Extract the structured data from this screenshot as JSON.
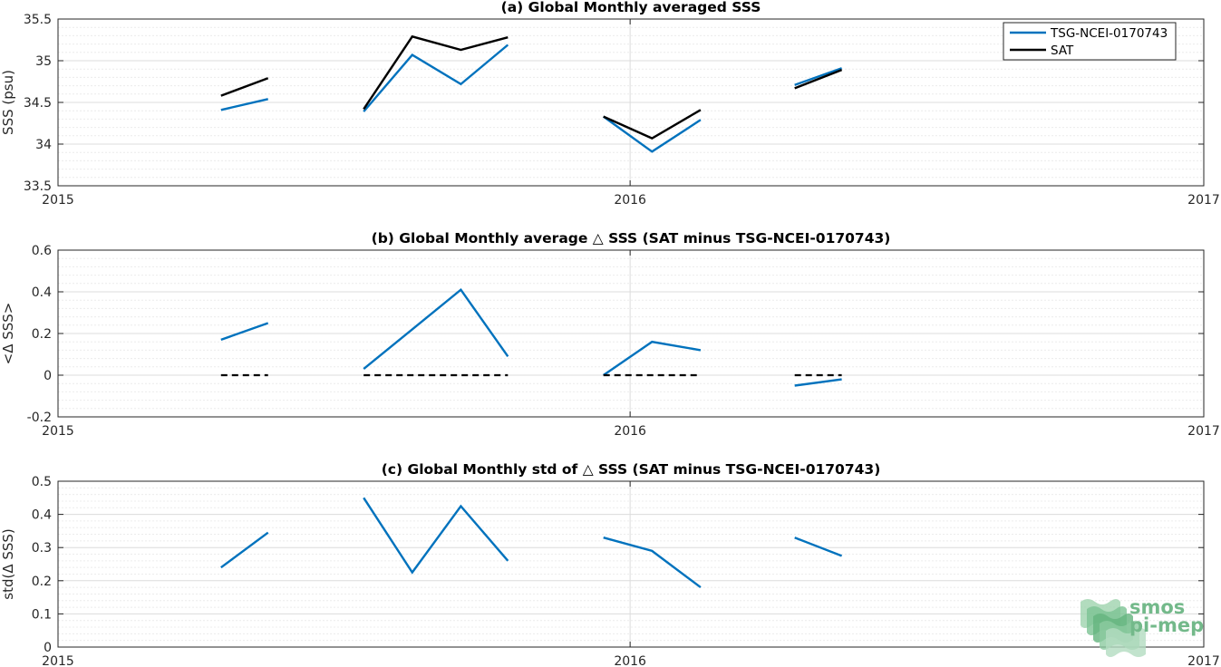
{
  "colors": {
    "tsg": "#0072bd",
    "sat": "#000000",
    "grid_major": "#dcdcdc",
    "grid_minor": "#ececec",
    "axis": "#262626",
    "logo": "#73b98a"
  },
  "logo": {
    "line1": "smos",
    "line2": "pi-mep"
  },
  "chart_data": [
    {
      "type": "line",
      "title": "(a) Global Monthly averaged SSS",
      "ylabel": "SSS (psu)",
      "xlim": [
        "2015-01-01",
        "2017-01-01"
      ],
      "ylim": [
        33.5,
        35.5
      ],
      "xticks": [
        "2015-01-01",
        "2016-01-01",
        "2017-01-01"
      ],
      "xtick_labels": [
        "2015",
        "2016",
        "2017"
      ],
      "yticks": [
        33.5,
        34,
        34.5,
        35,
        35.5
      ],
      "ytick_labels": [
        "33.5",
        "34",
        "34.5",
        "35",
        "35.5"
      ],
      "grid": true,
      "legend": "top-right",
      "series": [
        {
          "name": "TSG-NCEI-0170743",
          "color": "#0072bd",
          "segments": [
            [
              [
                "2015-04-15",
                34.41
              ],
              [
                "2015-05-15",
                34.54
              ]
            ],
            [
              [
                "2015-07-15",
                34.39
              ],
              [
                "2015-08-15",
                35.07
              ],
              [
                "2015-09-15",
                34.72
              ],
              [
                "2015-10-15",
                35.19
              ]
            ],
            [
              [
                "2015-12-15",
                34.33
              ],
              [
                "2016-01-15",
                33.91
              ],
              [
                "2016-02-15",
                34.29
              ]
            ],
            [
              [
                "2016-04-15",
                34.71
              ],
              [
                "2016-05-15",
                34.91
              ]
            ]
          ]
        },
        {
          "name": "SAT",
          "color": "#000000",
          "segments": [
            [
              [
                "2015-04-15",
                34.58
              ],
              [
                "2015-05-15",
                34.79
              ]
            ],
            [
              [
                "2015-07-15",
                34.42
              ],
              [
                "2015-08-15",
                35.29
              ],
              [
                "2015-09-15",
                35.13
              ],
              [
                "2015-10-15",
                35.28
              ]
            ],
            [
              [
                "2015-12-15",
                34.33
              ],
              [
                "2016-01-15",
                34.07
              ],
              [
                "2016-02-15",
                34.41
              ]
            ],
            [
              [
                "2016-04-15",
                34.67
              ],
              [
                "2016-05-15",
                34.89
              ]
            ]
          ]
        }
      ]
    },
    {
      "type": "line",
      "title": "(b) Global Monthly average △ SSS (SAT minus TSG-NCEI-0170743)",
      "ylabel": "<Δ SSS>",
      "xlim": [
        "2015-01-01",
        "2017-01-01"
      ],
      "ylim": [
        -0.2,
        0.6
      ],
      "xticks": [
        "2015-01-01",
        "2016-01-01",
        "2017-01-01"
      ],
      "xtick_labels": [
        "2015",
        "2016",
        "2017"
      ],
      "yticks": [
        -0.2,
        0,
        0.2,
        0.4,
        0.6
      ],
      "ytick_labels": [
        "-0.2",
        "0",
        "0.2",
        "0.4",
        "0.6"
      ],
      "grid": true,
      "series": [
        {
          "color": "#0072bd",
          "segments": [
            [
              [
                "2015-04-15",
                0.17
              ],
              [
                "2015-05-15",
                0.25
              ]
            ],
            [
              [
                "2015-07-15",
                0.03
              ],
              [
                "2015-08-15",
                0.22
              ],
              [
                "2015-09-15",
                0.41
              ],
              [
                "2015-10-15",
                0.09
              ]
            ],
            [
              [
                "2015-12-15",
                0.0
              ],
              [
                "2016-01-15",
                0.16
              ],
              [
                "2016-02-15",
                0.12
              ]
            ],
            [
              [
                "2016-04-15",
                -0.05
              ],
              [
                "2016-05-15",
                -0.02
              ]
            ]
          ]
        },
        {
          "color": "#000000",
          "dashed": true,
          "segments": [
            [
              [
                "2015-04-15",
                0
              ],
              [
                "2015-05-15",
                0
              ]
            ],
            [
              [
                "2015-07-15",
                0
              ],
              [
                "2015-10-15",
                0
              ]
            ],
            [
              [
                "2015-12-15",
                0
              ],
              [
                "2016-02-15",
                0
              ]
            ],
            [
              [
                "2016-04-15",
                0
              ],
              [
                "2016-05-15",
                0
              ]
            ]
          ]
        }
      ]
    },
    {
      "type": "line",
      "title": "(c) Global Monthly std of △ SSS (SAT minus TSG-NCEI-0170743)",
      "ylabel": "std(Δ SSS)",
      "xlim": [
        "2015-01-01",
        "2017-01-01"
      ],
      "ylim": [
        0,
        0.5
      ],
      "xticks": [
        "2015-01-01",
        "2016-01-01",
        "2017-01-01"
      ],
      "xtick_labels": [
        "2015",
        "2016",
        "2017"
      ],
      "yticks": [
        0,
        0.1,
        0.2,
        0.3,
        0.4,
        0.5
      ],
      "ytick_labels": [
        "0",
        "0.1",
        "0.2",
        "0.3",
        "0.4",
        "0.5"
      ],
      "grid": true,
      "series": [
        {
          "color": "#0072bd",
          "segments": [
            [
              [
                "2015-04-15",
                0.24
              ],
              [
                "2015-05-15",
                0.345
              ]
            ],
            [
              [
                "2015-07-15",
                0.45
              ],
              [
                "2015-08-15",
                0.225
              ],
              [
                "2015-09-15",
                0.425
              ],
              [
                "2015-10-15",
                0.26
              ]
            ],
            [
              [
                "2015-12-15",
                0.33
              ],
              [
                "2016-01-15",
                0.29
              ],
              [
                "2016-02-15",
                0.18
              ]
            ],
            [
              [
                "2016-04-15",
                0.33
              ],
              [
                "2016-05-15",
                0.275
              ]
            ]
          ]
        }
      ]
    }
  ]
}
